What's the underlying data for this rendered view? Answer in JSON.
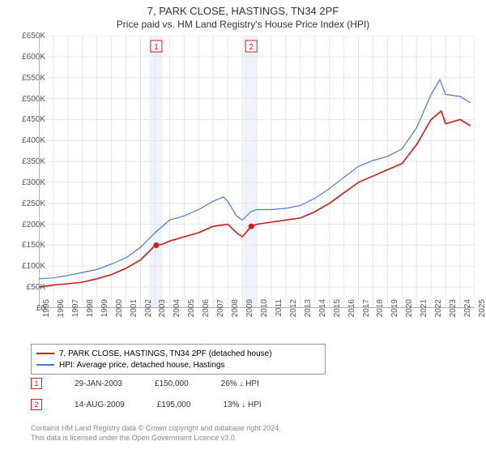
{
  "title": "7, PARK CLOSE, HASTINGS, TN34 2PF",
  "subtitle": "Price paid vs. HM Land Registry's House Price Index (HPI)",
  "chart": {
    "type": "line",
    "x_years": [
      1995,
      1996,
      1997,
      1998,
      1999,
      2000,
      2001,
      2002,
      2003,
      2004,
      2005,
      2006,
      2007,
      2008,
      2009,
      2010,
      2011,
      2012,
      2013,
      2014,
      2015,
      2016,
      2017,
      2018,
      2019,
      2020,
      2021,
      2022,
      2023,
      2024,
      2025
    ],
    "ylim": [
      0,
      650000
    ],
    "ytick_step": 50000,
    "ytick_labels": [
      "£0",
      "£50K",
      "£100K",
      "£150K",
      "£200K",
      "£250K",
      "£300K",
      "£350K",
      "£400K",
      "£450K",
      "£500K",
      "£550K",
      "£600K",
      "£650K"
    ],
    "background_color": "#ffffff",
    "grid_color": "#e6e6e6",
    "axis_color": "#666666",
    "shade_bands": [
      {
        "from_year": 2002.6,
        "to_year": 2003.5,
        "color": "#eef3fb"
      },
      {
        "from_year": 2009.1,
        "to_year": 2010.0,
        "color": "#eef3fb"
      }
    ],
    "series": [
      {
        "name": "price_paid",
        "label": "7, PARK CLOSE, HASTINGS, TN34 2PF (detached house)",
        "color": "#d11919",
        "line_width": 1.6,
        "data": [
          [
            1995,
            50000
          ],
          [
            1996,
            55000
          ],
          [
            1997,
            58000
          ],
          [
            1998,
            62000
          ],
          [
            1999,
            70000
          ],
          [
            2000,
            80000
          ],
          [
            2001,
            95000
          ],
          [
            2002,
            115000
          ],
          [
            2003,
            150000
          ],
          [
            2003.5,
            152000
          ],
          [
            2004,
            160000
          ],
          [
            2005,
            170000
          ],
          [
            2006,
            180000
          ],
          [
            2007,
            195000
          ],
          [
            2008,
            200000
          ],
          [
            2008.6,
            180000
          ],
          [
            2009,
            170000
          ],
          [
            2009.62,
            195000
          ],
          [
            2010,
            200000
          ],
          [
            2011,
            205000
          ],
          [
            2012,
            210000
          ],
          [
            2013,
            215000
          ],
          [
            2014,
            230000
          ],
          [
            2015,
            250000
          ],
          [
            2016,
            275000
          ],
          [
            2017,
            300000
          ],
          [
            2018,
            315000
          ],
          [
            2019,
            330000
          ],
          [
            2020,
            345000
          ],
          [
            2021,
            390000
          ],
          [
            2022,
            450000
          ],
          [
            2022.7,
            470000
          ],
          [
            2023,
            440000
          ],
          [
            2024,
            450000
          ],
          [
            2024.7,
            435000
          ]
        ]
      },
      {
        "name": "hpi",
        "label": "HPI: Average price, detached house, Hastings",
        "color": "#4a7bd1",
        "line_width": 1.2,
        "data": [
          [
            1995,
            70000
          ],
          [
            1996,
            72000
          ],
          [
            1997,
            78000
          ],
          [
            1998,
            85000
          ],
          [
            1999,
            92000
          ],
          [
            2000,
            105000
          ],
          [
            2001,
            120000
          ],
          [
            2002,
            145000
          ],
          [
            2003,
            180000
          ],
          [
            2004,
            210000
          ],
          [
            2005,
            220000
          ],
          [
            2006,
            235000
          ],
          [
            2007,
            255000
          ],
          [
            2007.7,
            265000
          ],
          [
            2008,
            255000
          ],
          [
            2008.6,
            220000
          ],
          [
            2009,
            210000
          ],
          [
            2009.6,
            230000
          ],
          [
            2010,
            235000
          ],
          [
            2011,
            235000
          ],
          [
            2012,
            238000
          ],
          [
            2013,
            245000
          ],
          [
            2014,
            262000
          ],
          [
            2015,
            285000
          ],
          [
            2016,
            312000
          ],
          [
            2017,
            338000
          ],
          [
            2018,
            352000
          ],
          [
            2019,
            362000
          ],
          [
            2020,
            380000
          ],
          [
            2021,
            430000
          ],
          [
            2022,
            510000
          ],
          [
            2022.6,
            545000
          ],
          [
            2023,
            510000
          ],
          [
            2024,
            505000
          ],
          [
            2024.7,
            490000
          ]
        ]
      }
    ],
    "sale_markers": [
      {
        "badge": "1",
        "year": 2003.08,
        "price": 150000,
        "color": "#d11919"
      },
      {
        "badge": "2",
        "year": 2009.62,
        "price": 195000,
        "color": "#d11919"
      }
    ]
  },
  "legend": {
    "series1_label": "7, PARK CLOSE, HASTINGS, TN34 2PF (detached house)",
    "series2_label": "HPI: Average price, detached house, Hastings"
  },
  "sales": [
    {
      "badge": "1",
      "date": "29-JAN-2003",
      "price": "£150,000",
      "delta": "26% ↓ HPI"
    },
    {
      "badge": "2",
      "date": "14-AUG-2009",
      "price": "£195,000",
      "delta": "13% ↓ HPI"
    }
  ],
  "footer_line1": "Contains HM Land Registry data © Crown copyright and database right 2024.",
  "footer_line2": "This data is licensed under the Open Government Licence v3.0."
}
